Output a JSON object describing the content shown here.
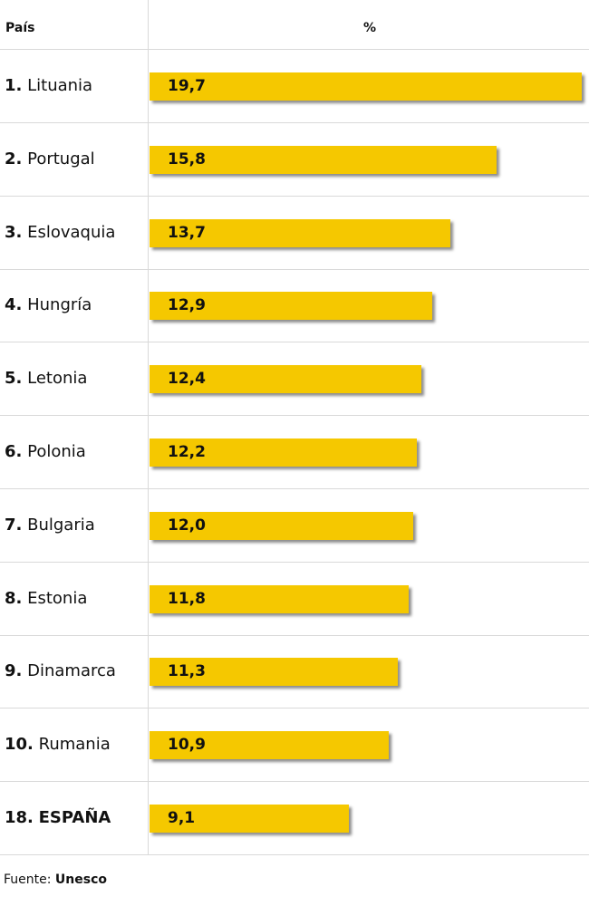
{
  "header": {
    "country_label": "País",
    "value_label": "%"
  },
  "chart_data": {
    "type": "bar",
    "orientation": "horizontal",
    "xlim": [
      0,
      19.7
    ],
    "bar_color": "#f5c800",
    "categories": [
      "Lituania",
      "Portugal",
      "Eslovaquia",
      "Hungría",
      "Letonia",
      "Polonia",
      "Bulgaria",
      "Estonia",
      "Dinamarca",
      "Rumania",
      "ESPAÑA"
    ],
    "ranks": [
      "1.",
      "2.",
      "3.",
      "4.",
      "5.",
      "6.",
      "7.",
      "8.",
      "9.",
      "10.",
      "18."
    ],
    "values": [
      19.7,
      15.8,
      13.7,
      12.9,
      12.4,
      12.2,
      12.0,
      11.8,
      11.3,
      10.9,
      9.1
    ],
    "value_labels": [
      "19,7",
      "15,8",
      "13,7",
      "12,9",
      "12,4",
      "12,2",
      "12,0",
      "11,8",
      "11,3",
      "10,9",
      "9,1"
    ],
    "highlight": "ESPAÑA"
  },
  "footer": {
    "source_prefix": "Fuente:",
    "source_name": "Unesco"
  }
}
